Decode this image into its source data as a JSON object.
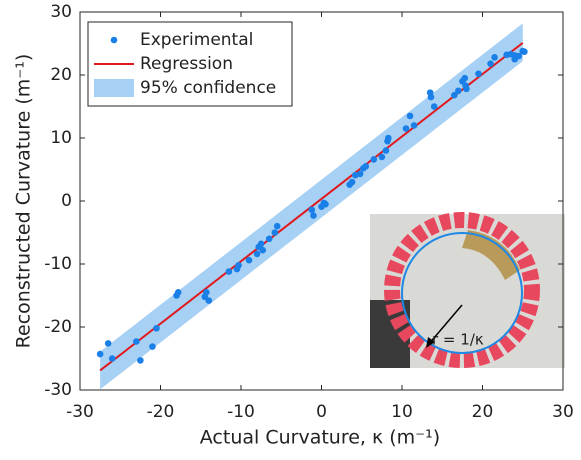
{
  "chart_data": {
    "type": "scatter",
    "xlabel": "Actual Curvature, κ (m⁻¹)",
    "ylabel": "Reconstructed Curvature (m⁻¹)",
    "xlim": [
      -30,
      30
    ],
    "ylim": [
      -30,
      30
    ],
    "xticks": [
      -30,
      -20,
      -10,
      0,
      10,
      20,
      30
    ],
    "yticks": [
      -30,
      -20,
      -10,
      0,
      10,
      20,
      30
    ],
    "legend": "upper left",
    "inset_label": "r = 1/κ",
    "series": [
      {
        "name": "Experimental",
        "kind": "scatter",
        "color": "#1a7fe6",
        "x": [
          -27.5,
          -26.5,
          -26,
          -23,
          -22.5,
          -21,
          -20.5,
          -18,
          -17.8,
          -14.5,
          -14.3,
          -14,
          -11.5,
          -10.5,
          -10.3,
          -9,
          -8,
          -7.8,
          -7.5,
          -7.3,
          -6.5,
          -5.8,
          -5.5,
          -1.2,
          -1,
          0,
          0.3,
          0.5,
          3.5,
          3.8,
          4.2,
          4.8,
          5.2,
          5.5,
          6.5,
          7.5,
          8,
          8.2,
          8.3,
          10.5,
          11,
          11.5,
          13.5,
          13.6,
          14,
          16.5,
          17,
          17.5,
          17.8,
          17.9,
          18,
          19.5,
          21,
          21.5,
          23,
          23.5,
          24,
          24,
          24.5,
          25,
          25.2
        ],
        "values": [
          -24.3,
          -22.6,
          -25,
          -22.3,
          -25.3,
          -23.1,
          -20.2,
          -15,
          -14.5,
          -15.2,
          -14.5,
          -15.8,
          -11.2,
          -10.8,
          -10.2,
          -9.4,
          -8.4,
          -7.3,
          -6.8,
          -7.8,
          -6,
          -5,
          -4,
          -1.4,
          -2.3,
          -0.9,
          -0.3,
          -0.5,
          2.6,
          3,
          4.1,
          4.3,
          5.2,
          5.5,
          6.6,
          7,
          8,
          9.5,
          10,
          11.5,
          13.5,
          12,
          17.2,
          16.5,
          15,
          16.8,
          17.5,
          19,
          19.5,
          18.3,
          17.8,
          20.2,
          21.8,
          22.8,
          23.2,
          23.3,
          23.1,
          22.5,
          23,
          23.8,
          23.7
        ]
      },
      {
        "name": "Regression",
        "kind": "line",
        "color": "#e0191c",
        "x": [
          -27.5,
          25
        ],
        "values": [
          -26.9,
          25.1
        ]
      },
      {
        "name": "95% confidence",
        "kind": "band",
        "color": "#a7d0f5",
        "x": [
          -27.5,
          25
        ],
        "lower": [
          -29.9,
          22.2
        ],
        "upper": [
          -23.9,
          28.2
        ]
      }
    ]
  }
}
